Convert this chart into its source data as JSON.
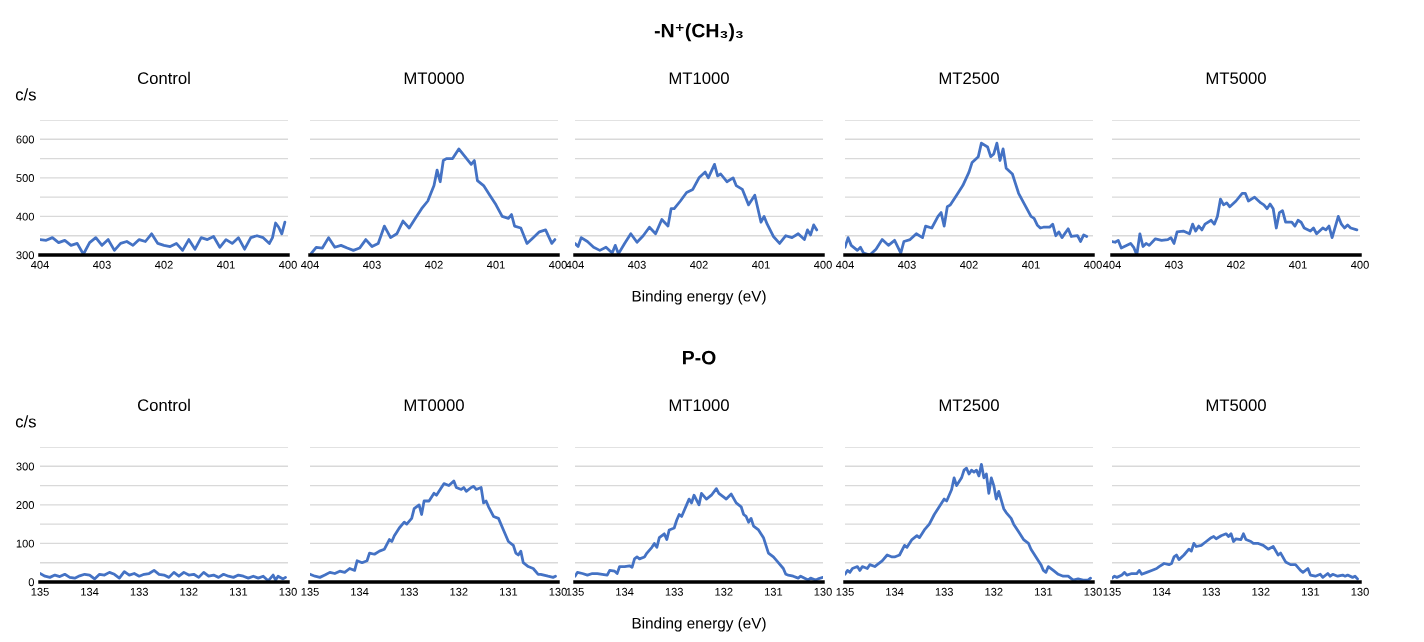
{
  "chart_data": [
    {
      "type": "line",
      "title": "Control",
      "ylabel": "c/s",
      "xlim": [
        404,
        400
      ],
      "xticks": [
        404,
        403,
        402,
        401,
        400
      ],
      "ylim": [
        300,
        650
      ],
      "yticks": [
        300,
        {
          "value": 350,
          "label": null
        },
        400,
        {
          "value": 450,
          "label": null
        },
        500,
        {
          "value": 550,
          "label": null
        },
        600,
        {
          "value": 650,
          "label": null
        }
      ],
      "grid": "y",
      "series": [
        {
          "color": "#4472c4",
          "x": [
            404.0,
            403.9,
            403.8,
            403.7,
            403.6,
            403.5,
            403.4,
            403.3,
            403.2,
            403.1,
            403.0,
            402.9,
            402.8,
            402.7,
            402.6,
            402.5,
            402.4,
            402.3,
            402.2,
            402.1,
            402.0,
            401.9,
            401.8,
            401.7,
            401.6,
            401.5,
            401.4,
            401.3,
            401.2,
            401.1,
            401.0,
            400.9,
            400.8,
            400.7,
            400.6,
            400.5,
            400.4,
            400.3,
            400.25,
            400.2,
            400.15,
            400.1,
            400.05
          ],
          "values": [
            340,
            338,
            345,
            332,
            338,
            325,
            330,
            302,
            332,
            345,
            325,
            340,
            312,
            330,
            335,
            325,
            340,
            335,
            355,
            330,
            325,
            322,
            330,
            312,
            340,
            315,
            345,
            340,
            348,
            320,
            340,
            330,
            345,
            315,
            345,
            350,
            345,
            330,
            345,
            383,
            372,
            355,
            385
          ]
        }
      ]
    },
    {
      "type": "line",
      "title": "MT0000",
      "xlim": [
        404,
        400
      ],
      "xticks": [
        404,
        403,
        402,
        401,
        400
      ],
      "ylim": [
        300,
        650
      ],
      "yticks": [
        300,
        {
          "value": 350,
          "label": null
        },
        400,
        {
          "value": 450,
          "label": null
        },
        500,
        {
          "value": 550,
          "label": null
        },
        600,
        {
          "value": 650,
          "label": null
        }
      ],
      "grid": "y",
      "tick_labels": "x",
      "series": [
        {
          "color": "#4472c4",
          "x": [
            404.0,
            403.9,
            403.8,
            403.7,
            403.6,
            403.5,
            403.4,
            403.3,
            403.2,
            403.1,
            403.0,
            402.9,
            402.8,
            402.7,
            402.6,
            402.5,
            402.4,
            402.3,
            402.2,
            402.1,
            402.0,
            401.95,
            401.9,
            401.85,
            401.8,
            401.7,
            401.6,
            401.5,
            401.4,
            401.35,
            401.3,
            401.2,
            401.1,
            401.0,
            400.9,
            400.8,
            400.75,
            400.7,
            400.6,
            400.5,
            400.4,
            400.3,
            400.2,
            400.1,
            400.05
          ],
          "values": [
            300,
            320,
            318,
            345,
            320,
            325,
            318,
            312,
            318,
            340,
            322,
            330,
            375,
            345,
            355,
            388,
            370,
            395,
            420,
            440,
            480,
            520,
            490,
            545,
            550,
            550,
            575,
            555,
            535,
            545,
            493,
            480,
            455,
            430,
            400,
            395,
            405,
            375,
            370,
            330,
            345,
            360,
            365,
            330,
            340
          ]
        }
      ]
    },
    {
      "type": "line",
      "title": "MT1000",
      "subtitle": "-N⁺(CH₃)₃",
      "xlabel": "Binding energy (eV)",
      "xlim": [
        404,
        400
      ],
      "xticks": [
        404,
        403,
        402,
        401,
        400
      ],
      "ylim": [
        300,
        650
      ],
      "yticks": [
        300,
        {
          "value": 350,
          "label": null
        },
        400,
        {
          "value": 450,
          "label": null
        },
        500,
        {
          "value": 550,
          "label": null
        },
        600,
        {
          "value": 650,
          "label": null
        }
      ],
      "grid": "y",
      "tick_labels": "x",
      "series": [
        {
          "color": "#4472c4",
          "x": [
            404.0,
            403.95,
            403.9,
            403.8,
            403.7,
            403.6,
            403.5,
            403.4,
            403.35,
            403.3,
            403.2,
            403.1,
            403.0,
            402.9,
            402.8,
            402.7,
            402.6,
            402.5,
            402.45,
            402.4,
            402.3,
            402.2,
            402.1,
            402.0,
            401.9,
            401.85,
            401.75,
            401.7,
            401.65,
            401.55,
            401.45,
            401.4,
            401.3,
            401.2,
            401.1,
            401.0,
            400.95,
            400.9,
            400.8,
            400.7,
            400.6,
            400.5,
            400.4,
            400.3,
            400.25,
            400.2,
            400.15,
            400.1
          ],
          "values": [
            330,
            322,
            345,
            335,
            320,
            312,
            320,
            305,
            325,
            303,
            330,
            355,
            333,
            350,
            372,
            355,
            392,
            375,
            420,
            420,
            440,
            462,
            470,
            500,
            515,
            500,
            535,
            505,
            510,
            490,
            500,
            480,
            470,
            430,
            455,
            385,
            400,
            380,
            348,
            330,
            350,
            345,
            355,
            340,
            365,
            352,
            378,
            365
          ]
        }
      ]
    },
    {
      "type": "line",
      "title": "MT2500",
      "xlim": [
        404,
        400
      ],
      "xticks": [
        404,
        403,
        402,
        401,
        400
      ],
      "ylim": [
        300,
        650
      ],
      "yticks": [
        300,
        {
          "value": 350,
          "label": null
        },
        400,
        {
          "value": 450,
          "label": null
        },
        500,
        {
          "value": 550,
          "label": null
        },
        600,
        {
          "value": 650,
          "label": null
        }
      ],
      "grid": "y",
      "tick_labels": "x",
      "series": [
        {
          "color": "#4472c4",
          "x": [
            404.0,
            403.95,
            403.9,
            403.8,
            403.75,
            403.7,
            403.6,
            403.5,
            403.4,
            403.3,
            403.2,
            403.1,
            403.05,
            402.95,
            402.85,
            402.75,
            402.7,
            402.6,
            402.5,
            402.45,
            402.4,
            402.35,
            402.3,
            402.2,
            402.1,
            402.0,
            401.95,
            401.85,
            401.8,
            401.7,
            401.65,
            401.6,
            401.55,
            401.5,
            401.45,
            401.4,
            401.3,
            401.2,
            401.1,
            401.0,
            400.95,
            400.9,
            400.85,
            400.8,
            400.7,
            400.65,
            400.6,
            400.55,
            400.5,
            400.4,
            400.35,
            400.25,
            400.2,
            400.15,
            400.1
          ],
          "values": [
            320,
            345,
            325,
            312,
            320,
            305,
            300,
            315,
            340,
            325,
            338,
            305,
            335,
            340,
            355,
            345,
            375,
            370,
            400,
            410,
            375,
            425,
            430,
            455,
            480,
            515,
            540,
            555,
            590,
            580,
            555,
            562,
            590,
            545,
            575,
            525,
            510,
            460,
            430,
            400,
            395,
            378,
            370,
            372,
            372,
            380,
            350,
            360,
            345,
            368,
            348,
            350,
            335,
            352,
            348
          ]
        }
      ]
    },
    {
      "type": "line",
      "title": "MT5000",
      "xlim": [
        404,
        400
      ],
      "xticks": [
        404,
        403,
        402,
        401,
        400
      ],
      "ylim": [
        300,
        650
      ],
      "yticks": [
        300,
        {
          "value": 350,
          "label": null
        },
        400,
        {
          "value": 450,
          "label": null
        },
        500,
        {
          "value": 550,
          "label": null
        },
        600,
        {
          "value": 650,
          "label": null
        }
      ],
      "grid": "y",
      "tick_labels": "x",
      "series": [
        {
          "color": "#4472c4",
          "x": [
            404.0,
            403.95,
            403.9,
            403.85,
            403.7,
            403.65,
            403.6,
            403.55,
            403.5,
            403.45,
            403.4,
            403.3,
            403.2,
            403.1,
            403.05,
            403.0,
            402.95,
            402.85,
            402.75,
            402.7,
            402.65,
            402.6,
            402.55,
            402.5,
            402.4,
            402.35,
            402.3,
            402.25,
            402.2,
            402.15,
            402.1,
            402.0,
            401.9,
            401.85,
            401.8,
            401.7,
            401.6,
            401.55,
            401.5,
            401.45,
            401.4,
            401.35,
            401.3,
            401.25,
            401.2,
            401.1,
            401.05,
            401.0,
            400.95,
            400.9,
            400.8,
            400.75,
            400.7,
            400.6,
            400.55,
            400.5,
            400.45,
            400.35,
            400.3,
            400.25,
            400.2,
            400.15,
            400.05
          ],
          "values": [
            335,
            333,
            338,
            318,
            330,
            320,
            300,
            355,
            322,
            330,
            325,
            342,
            338,
            340,
            345,
            330,
            360,
            362,
            355,
            380,
            362,
            375,
            365,
            380,
            390,
            380,
            400,
            445,
            430,
            435,
            425,
            440,
            460,
            460,
            440,
            450,
            435,
            430,
            420,
            432,
            420,
            370,
            410,
            415,
            385,
            385,
            375,
            390,
            385,
            370,
            362,
            370,
            355,
            370,
            365,
            375,
            345,
            400,
            380,
            370,
            378,
            370,
            365
          ]
        }
      ]
    },
    {
      "type": "line",
      "title": "Control",
      "ylabel": "c/s",
      "xlim": [
        135,
        130
      ],
      "xticks": [
        135,
        134,
        133,
        132,
        131,
        130
      ],
      "ylim": [
        0,
        350
      ],
      "yticks": [
        0,
        {
          "value": 50,
          "label": null
        },
        100,
        {
          "value": 150,
          "label": null
        },
        200,
        {
          "value": 250,
          "label": null
        },
        300,
        {
          "value": 350,
          "label": null
        }
      ],
      "grid": "y",
      "series": [
        {
          "color": "#4472c4",
          "x": [
            135.0,
            134.9,
            134.8,
            134.7,
            134.6,
            134.5,
            134.4,
            134.3,
            134.2,
            134.1,
            134.0,
            133.9,
            133.8,
            133.7,
            133.6,
            133.5,
            133.4,
            133.3,
            133.2,
            133.1,
            133.0,
            132.9,
            132.8,
            132.7,
            132.6,
            132.5,
            132.4,
            132.3,
            132.2,
            132.1,
            132.0,
            131.9,
            131.8,
            131.7,
            131.6,
            131.5,
            131.4,
            131.3,
            131.2,
            131.1,
            131.0,
            130.9,
            130.8,
            130.7,
            130.6,
            130.5,
            130.4,
            130.3,
            130.25,
            130.2,
            130.1,
            130.05
          ],
          "values": [
            22,
            15,
            12,
            18,
            14,
            20,
            12,
            10,
            16,
            20,
            18,
            8,
            20,
            18,
            25,
            20,
            10,
            27,
            18,
            22,
            15,
            20,
            22,
            30,
            20,
            18,
            12,
            25,
            15,
            25,
            18,
            20,
            12,
            25,
            15,
            18,
            12,
            20,
            15,
            12,
            18,
            15,
            10,
            15,
            10,
            15,
            3,
            18,
            5,
            15,
            8,
            12
          ]
        }
      ]
    },
    {
      "type": "line",
      "title": "MT0000",
      "xlim": [
        135,
        130
      ],
      "xticks": [
        135,
        134,
        133,
        132,
        131,
        130
      ],
      "ylim": [
        0,
        350
      ],
      "yticks": [
        0,
        {
          "value": 50,
          "label": null
        },
        100,
        {
          "value": 150,
          "label": null
        },
        200,
        {
          "value": 250,
          "label": null
        },
        300,
        {
          "value": 350,
          "label": null
        }
      ],
      "grid": "y",
      "tick_labels": "x",
      "series": [
        {
          "color": "#4472c4",
          "x": [
            135.0,
            134.9,
            134.8,
            134.7,
            134.6,
            134.5,
            134.4,
            134.3,
            134.2,
            134.1,
            134.05,
            133.95,
            133.85,
            133.8,
            133.7,
            133.6,
            133.5,
            133.4,
            133.35,
            133.3,
            133.2,
            133.1,
            133.05,
            132.95,
            132.9,
            132.8,
            132.75,
            132.7,
            132.6,
            132.5,
            132.45,
            132.35,
            132.3,
            132.2,
            132.1,
            132.05,
            131.95,
            131.9,
            131.85,
            131.75,
            131.7,
            131.65,
            131.55,
            131.5,
            131.45,
            131.4,
            131.3,
            131.2,
            131.1,
            131.0,
            130.9,
            130.85,
            130.8,
            130.75,
            130.7,
            130.6,
            130.5,
            130.4,
            130.35,
            130.2,
            130.1,
            130.05
          ],
          "values": [
            20,
            15,
            12,
            18,
            25,
            22,
            28,
            25,
            35,
            30,
            55,
            50,
            55,
            75,
            72,
            80,
            85,
            110,
            105,
            120,
            140,
            155,
            150,
            165,
            190,
            200,
            175,
            210,
            210,
            230,
            225,
            245,
            255,
            250,
            262,
            245,
            240,
            245,
            235,
            245,
            248,
            240,
            245,
            205,
            210,
            195,
            170,
            165,
            135,
            105,
            95,
            75,
            70,
            80,
            50,
            40,
            35,
            20,
            20,
            15,
            12,
            15
          ]
        }
      ]
    },
    {
      "type": "line",
      "title": "MT1000",
      "subtitle": "P-O",
      "xlabel": "Binding energy (eV)",
      "xlim": [
        135,
        130
      ],
      "xticks": [
        135,
        134,
        133,
        132,
        131,
        130
      ],
      "ylim": [
        0,
        350
      ],
      "yticks": [
        0,
        {
          "value": 50,
          "label": null
        },
        100,
        {
          "value": 150,
          "label": null
        },
        200,
        {
          "value": 250,
          "label": null
        },
        300,
        {
          "value": 350,
          "label": null
        }
      ],
      "grid": "y",
      "tick_labels": "x",
      "series": [
        {
          "color": "#4472c4",
          "x": [
            135.0,
            134.95,
            134.85,
            134.75,
            134.65,
            134.55,
            134.45,
            134.35,
            134.3,
            134.2,
            134.15,
            134.1,
            134.0,
            133.9,
            133.85,
            133.8,
            133.75,
            133.7,
            133.6,
            133.55,
            133.45,
            133.4,
            133.35,
            133.3,
            133.2,
            133.15,
            133.1,
            133.0,
            132.95,
            132.9,
            132.85,
            132.75,
            132.7,
            132.65,
            132.6,
            132.5,
            132.45,
            132.35,
            132.25,
            132.15,
            132.1,
            132.0,
            131.95,
            131.85,
            131.75,
            131.7,
            131.65,
            131.6,
            131.55,
            131.5,
            131.45,
            131.4,
            131.3,
            131.2,
            131.1,
            131.0,
            130.9,
            130.8,
            130.75,
            130.7,
            130.6,
            130.5,
            130.45,
            130.3,
            130.25,
            130.15,
            130.1,
            130.0
          ],
          "values": [
            15,
            25,
            22,
            18,
            22,
            22,
            20,
            18,
            30,
            28,
            22,
            40,
            40,
            42,
            38,
            60,
            65,
            60,
            65,
            75,
            90,
            100,
            90,
            115,
            125,
            110,
            135,
            140,
            160,
            175,
            170,
            200,
            215,
            205,
            225,
            200,
            230,
            215,
            225,
            242,
            230,
            220,
            215,
            228,
            205,
            200,
            195,
            175,
            170,
            155,
            165,
            145,
            135,
            115,
            75,
            65,
            50,
            35,
            20,
            18,
            15,
            10,
            15,
            5,
            10,
            5,
            8,
            12
          ]
        }
      ]
    },
    {
      "type": "line",
      "title": "MT2500",
      "xlim": [
        135,
        130
      ],
      "xticks": [
        135,
        134,
        133,
        132,
        131,
        130
      ],
      "ylim": [
        0,
        350
      ],
      "yticks": [
        0,
        {
          "value": 50,
          "label": null
        },
        100,
        {
          "value": 150,
          "label": null
        },
        200,
        {
          "value": 250,
          "label": null
        },
        300,
        {
          "value": 350,
          "label": null
        }
      ],
      "grid": "y",
      "tick_labels": "x",
      "series": [
        {
          "color": "#4472c4",
          "x": [
            135.0,
            134.95,
            134.9,
            134.85,
            134.75,
            134.7,
            134.65,
            134.55,
            134.5,
            134.4,
            134.35,
            134.25,
            134.15,
            134.05,
            134.0,
            133.9,
            133.8,
            133.75,
            133.65,
            133.6,
            133.55,
            133.5,
            133.4,
            133.3,
            133.2,
            133.1,
            133.0,
            132.95,
            132.9,
            132.85,
            132.8,
            132.75,
            132.65,
            132.6,
            132.55,
            132.5,
            132.45,
            132.4,
            132.35,
            132.3,
            132.25,
            132.2,
            132.15,
            132.1,
            132.05,
            132.0,
            131.95,
            131.9,
            131.8,
            131.75,
            131.65,
            131.6,
            131.5,
            131.4,
            131.3,
            131.25,
            131.15,
            131.05,
            131.0,
            130.95,
            130.9,
            130.8,
            130.7,
            130.6,
            130.5,
            130.45,
            130.4,
            130.3,
            130.2,
            130.1,
            130.05
          ],
          "values": [
            20,
            30,
            25,
            35,
            40,
            30,
            40,
            35,
            45,
            40,
            45,
            55,
            70,
            65,
            65,
            70,
            95,
            90,
            110,
            115,
            120,
            115,
            135,
            150,
            175,
            195,
            215,
            210,
            225,
            240,
            270,
            250,
            270,
            290,
            295,
            280,
            290,
            285,
            290,
            275,
            305,
            270,
            280,
            230,
            270,
            250,
            215,
            235,
            190,
            180,
            165,
            150,
            130,
            110,
            100,
            85,
            65,
            45,
            30,
            25,
            40,
            30,
            20,
            15,
            15,
            10,
            5,
            8,
            5,
            5,
            10
          ]
        }
      ]
    },
    {
      "type": "line",
      "title": "MT5000",
      "xlim": [
        135,
        130
      ],
      "xticks": [
        135,
        134,
        133,
        132,
        131,
        130
      ],
      "ylim": [
        0,
        350
      ],
      "yticks": [
        0,
        {
          "value": 50,
          "label": null
        },
        100,
        {
          "value": 150,
          "label": null
        },
        200,
        {
          "value": 250,
          "label": null
        },
        300,
        {
          "value": 350,
          "label": null
        }
      ],
      "grid": "y",
      "tick_labels": "x",
      "series": [
        {
          "color": "#4472c4",
          "x": [
            135.0,
            134.95,
            134.9,
            134.8,
            134.75,
            134.7,
            134.6,
            134.5,
            134.45,
            134.4,
            134.3,
            134.2,
            134.1,
            134.05,
            133.95,
            133.85,
            133.8,
            133.75,
            133.7,
            133.65,
            133.55,
            133.45,
            133.4,
            133.35,
            133.3,
            133.2,
            133.1,
            133.0,
            132.95,
            132.9,
            132.8,
            132.7,
            132.65,
            132.6,
            132.55,
            132.5,
            132.4,
            132.35,
            132.3,
            132.2,
            132.15,
            132.05,
            131.95,
            131.85,
            131.75,
            131.65,
            131.6,
            131.5,
            131.4,
            131.3,
            131.2,
            131.15,
            131.05,
            131.0,
            130.9,
            130.8,
            130.75,
            130.65,
            130.6,
            130.55,
            130.45,
            130.35,
            130.3,
            130.25,
            130.15,
            130.1,
            130.05
          ],
          "values": [
            10,
            15,
            12,
            18,
            25,
            18,
            22,
            22,
            30,
            20,
            25,
            30,
            35,
            40,
            48,
            45,
            48,
            65,
            70,
            58,
            70,
            85,
            80,
            100,
            92,
            95,
            105,
            115,
            118,
            112,
            120,
            125,
            118,
            125,
            105,
            112,
            110,
            125,
            110,
            105,
            100,
            100,
            95,
            85,
            92,
            70,
            75,
            52,
            45,
            45,
            30,
            25,
            35,
            18,
            15,
            20,
            12,
            22,
            15,
            20,
            15,
            18,
            15,
            18,
            12,
            15,
            8
          ]
        }
      ]
    }
  ]
}
